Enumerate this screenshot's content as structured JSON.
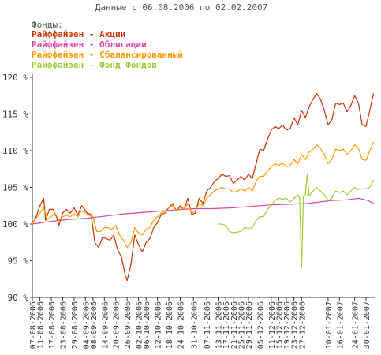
{
  "chart_data": {
    "type": "line",
    "title": "Данные с 06.08.2006 по 02.02.2007",
    "legend_title": "Фонды:",
    "legend_placement": "top-left",
    "grid": false,
    "ylim": [
      90,
      120
    ],
    "y_ticks": [
      {
        "value": 90,
        "label": "90 %"
      },
      {
        "value": 95,
        "label": "95 %"
      },
      {
        "value": 100,
        "label": "100 %"
      },
      {
        "value": 105,
        "label": "105 %"
      },
      {
        "value": 110,
        "label": "110 %"
      },
      {
        "value": 115,
        "label": "115 %"
      },
      {
        "value": 120,
        "label": "120 %"
      }
    ],
    "x_range": [
      "2006-08-07",
      "2007-02-04"
    ],
    "x_ticks": [
      "07-08-2006",
      "11-08-2006",
      "17-08-2006",
      "23-08-2006",
      "29-08-2006",
      "04-09-2006",
      "08-09-2006",
      "14-09-2006",
      "20-09-2006",
      "26-09-2006",
      "02-10-2006",
      "06-10-2006",
      "12-10-2006",
      "18-10-2006",
      "24-10-2006",
      "31-10-2006",
      "07-11-2006",
      "13-11-2006",
      "17-11-2006",
      "21-11-2006",
      "25-11-2006",
      "29-11-2006",
      "05-12-2006",
      "11-12-2006",
      "15-12-2006",
      "19-12-2006",
      "23-12-2006",
      "27-12-2006",
      "10-01-2007",
      "16-01-2007",
      "24-01-2007",
      "30-01-2007"
    ],
    "series": [
      {
        "name": "Райффайзен - Акции",
        "color": "#cc3300",
        "points": [
          [
            "2006-08-07",
            100.0
          ],
          [
            "2006-08-09",
            101.0
          ],
          [
            "2006-08-11",
            102.5
          ],
          [
            "2006-08-13",
            103.5
          ],
          [
            "2006-08-14",
            100.5
          ],
          [
            "2006-08-16",
            102.0
          ],
          [
            "2006-08-18",
            102.0
          ],
          [
            "2006-08-20",
            100.8
          ],
          [
            "2006-08-21",
            99.8
          ],
          [
            "2006-08-23",
            101.5
          ],
          [
            "2006-08-25",
            102.0
          ],
          [
            "2006-08-27",
            101.5
          ],
          [
            "2006-08-29",
            102.2
          ],
          [
            "2006-08-31",
            101.2
          ],
          [
            "2006-09-02",
            102.5
          ],
          [
            "2006-09-03",
            102.2
          ],
          [
            "2006-09-05",
            101.5
          ],
          [
            "2006-09-07",
            101.3
          ],
          [
            "2006-09-09",
            97.5
          ],
          [
            "2006-09-11",
            96.8
          ],
          [
            "2006-09-13",
            98.2
          ],
          [
            "2006-09-15",
            98.0
          ],
          [
            "2006-09-17",
            97.8
          ],
          [
            "2006-09-19",
            98.5
          ],
          [
            "2006-09-21",
            96.5
          ],
          [
            "2006-09-23",
            95.5
          ],
          [
            "2006-09-25",
            93.0
          ],
          [
            "2006-09-26",
            92.3
          ],
          [
            "2006-09-28",
            94.5
          ],
          [
            "2006-09-30",
            98.5
          ],
          [
            "2006-10-02",
            97.2
          ],
          [
            "2006-10-04",
            96.2
          ],
          [
            "2006-10-06",
            97.5
          ],
          [
            "2006-10-08",
            98.0
          ],
          [
            "2006-10-10",
            99.5
          ],
          [
            "2006-10-12",
            100.2
          ],
          [
            "2006-10-14",
            101.3
          ],
          [
            "2006-10-16",
            101.5
          ],
          [
            "2006-10-18",
            102.2
          ],
          [
            "2006-10-20",
            102.8
          ],
          [
            "2006-10-22",
            101.8
          ],
          [
            "2006-10-24",
            102.5
          ],
          [
            "2006-10-26",
            102.0
          ],
          [
            "2006-10-28",
            103.5
          ],
          [
            "2006-10-30",
            101.3
          ],
          [
            "2006-11-01",
            101.5
          ],
          [
            "2006-11-03",
            103.5
          ],
          [
            "2006-11-05",
            102.8
          ],
          [
            "2006-11-07",
            104.5
          ],
          [
            "2006-11-09",
            105.0
          ],
          [
            "2006-11-11",
            105.8
          ],
          [
            "2006-11-13",
            106.2
          ],
          [
            "2006-11-15",
            106.8
          ],
          [
            "2006-11-17",
            106.5
          ],
          [
            "2006-11-19",
            106.6
          ],
          [
            "2006-11-21",
            105.5
          ],
          [
            "2006-11-23",
            106.0
          ],
          [
            "2006-11-25",
            106.5
          ],
          [
            "2006-11-27",
            106.0
          ],
          [
            "2006-11-29",
            106.8
          ],
          [
            "2006-12-01",
            106.2
          ],
          [
            "2006-12-03",
            108.2
          ],
          [
            "2006-12-05",
            110.2
          ],
          [
            "2006-12-07",
            110.0
          ],
          [
            "2006-12-09",
            111.5
          ],
          [
            "2006-12-11",
            112.8
          ],
          [
            "2006-12-13",
            113.3
          ],
          [
            "2006-12-15",
            113.0
          ],
          [
            "2006-12-17",
            113.5
          ],
          [
            "2006-12-19",
            112.8
          ],
          [
            "2006-12-21",
            113.0
          ],
          [
            "2006-12-23",
            114.5
          ],
          [
            "2006-12-25",
            113.5
          ],
          [
            "2006-12-27",
            115.5
          ],
          [
            "2006-12-29",
            114.5
          ],
          [
            "2006-12-31",
            116.0
          ],
          [
            "2007-01-02",
            117.0
          ],
          [
            "2007-01-04",
            117.8
          ],
          [
            "2007-01-06",
            117.0
          ],
          [
            "2007-01-08",
            115.5
          ],
          [
            "2007-01-10",
            113.5
          ],
          [
            "2007-01-12",
            114.2
          ],
          [
            "2007-01-14",
            116.5
          ],
          [
            "2007-01-16",
            116.3
          ],
          [
            "2007-01-18",
            116.5
          ],
          [
            "2007-01-20",
            115.3
          ],
          [
            "2007-01-22",
            116.2
          ],
          [
            "2007-01-24",
            117.5
          ],
          [
            "2007-01-26",
            116.5
          ],
          [
            "2007-01-28",
            113.5
          ],
          [
            "2007-01-30",
            113.3
          ],
          [
            "2007-02-01",
            115.5
          ],
          [
            "2007-02-03",
            117.8
          ]
        ]
      },
      {
        "name": "Райффайзен - Облигации",
        "color": "#dd44aa",
        "points": [
          [
            "2006-08-07",
            100.0
          ],
          [
            "2006-08-15",
            100.3
          ],
          [
            "2006-08-25",
            100.6
          ],
          [
            "2006-09-05",
            100.8
          ],
          [
            "2006-09-15",
            101.1
          ],
          [
            "2006-09-25",
            101.4
          ],
          [
            "2006-10-05",
            101.6
          ],
          [
            "2006-10-15",
            101.8
          ],
          [
            "2006-10-25",
            102.0
          ],
          [
            "2006-11-01",
            102.1
          ],
          [
            "2006-11-10",
            102.1
          ],
          [
            "2006-11-20",
            102.2
          ],
          [
            "2006-11-30",
            102.4
          ],
          [
            "2006-12-10",
            102.6
          ],
          [
            "2006-12-20",
            102.7
          ],
          [
            "2006-12-30",
            102.8
          ],
          [
            "2007-01-05",
            103.0
          ],
          [
            "2007-01-12",
            103.2
          ],
          [
            "2007-01-20",
            103.3
          ],
          [
            "2007-01-26",
            103.5
          ],
          [
            "2007-01-28",
            103.4
          ],
          [
            "2007-01-31",
            103.2
          ],
          [
            "2007-02-03",
            102.8
          ]
        ]
      },
      {
        "name": "Райффайзен - Сбалансированный",
        "color": "#ff9900",
        "points": [
          [
            "2006-08-07",
            100.0
          ],
          [
            "2006-08-09",
            100.8
          ],
          [
            "2006-08-11",
            101.5
          ],
          [
            "2006-08-13",
            102.2
          ],
          [
            "2006-08-15",
            100.6
          ],
          [
            "2006-08-17",
            101.0
          ],
          [
            "2006-08-19",
            101.5
          ],
          [
            "2006-08-21",
            100.5
          ],
          [
            "2006-08-23",
            101.0
          ],
          [
            "2006-08-25",
            101.2
          ],
          [
            "2006-08-27",
            101.0
          ],
          [
            "2006-08-29",
            101.4
          ],
          [
            "2006-08-31",
            101.0
          ],
          [
            "2006-09-02",
            101.8
          ],
          [
            "2006-09-04",
            101.5
          ],
          [
            "2006-09-06",
            101.2
          ],
          [
            "2006-09-08",
            101.0
          ],
          [
            "2006-09-10",
            99.0
          ],
          [
            "2006-09-12",
            99.0
          ],
          [
            "2006-09-14",
            99.5
          ],
          [
            "2006-09-16",
            99.5
          ],
          [
            "2006-09-18",
            99.3
          ],
          [
            "2006-09-20",
            99.8
          ],
          [
            "2006-09-22",
            98.5
          ],
          [
            "2006-09-24",
            97.8
          ],
          [
            "2006-09-26",
            96.8
          ],
          [
            "2006-09-28",
            97.5
          ],
          [
            "2006-09-30",
            99.5
          ],
          [
            "2006-10-02",
            98.8
          ],
          [
            "2006-10-04",
            98.5
          ],
          [
            "2006-10-06",
            99.3
          ],
          [
            "2006-10-08",
            99.5
          ],
          [
            "2006-10-10",
            100.5
          ],
          [
            "2006-10-12",
            101.0
          ],
          [
            "2006-10-14",
            101.5
          ],
          [
            "2006-10-16",
            101.8
          ],
          [
            "2006-10-18",
            102.2
          ],
          [
            "2006-10-20",
            102.5
          ],
          [
            "2006-10-22",
            101.8
          ],
          [
            "2006-10-24",
            102.3
          ],
          [
            "2006-10-26",
            102.0
          ],
          [
            "2006-10-28",
            102.8
          ],
          [
            "2006-10-30",
            101.5
          ],
          [
            "2006-11-01",
            101.8
          ],
          [
            "2006-11-03",
            102.8
          ],
          [
            "2006-11-05",
            102.5
          ],
          [
            "2006-11-07",
            103.5
          ],
          [
            "2006-11-09",
            104.0
          ],
          [
            "2006-11-11",
            104.5
          ],
          [
            "2006-11-13",
            104.8
          ],
          [
            "2006-11-15",
            105.0
          ],
          [
            "2006-11-17",
            104.8
          ],
          [
            "2006-11-19",
            104.8
          ],
          [
            "2006-11-21",
            104.3
          ],
          [
            "2006-11-23",
            104.5
          ],
          [
            "2006-11-25",
            104.8
          ],
          [
            "2006-11-27",
            104.5
          ],
          [
            "2006-11-29",
            105.0
          ],
          [
            "2006-12-01",
            104.5
          ],
          [
            "2006-12-03",
            105.8
          ],
          [
            "2006-12-05",
            106.5
          ],
          [
            "2006-12-07",
            106.5
          ],
          [
            "2006-12-09",
            107.2
          ],
          [
            "2006-12-11",
            107.8
          ],
          [
            "2006-12-13",
            108.2
          ],
          [
            "2006-12-15",
            108.0
          ],
          [
            "2006-12-17",
            108.3
          ],
          [
            "2006-12-19",
            107.8
          ],
          [
            "2006-12-21",
            108.0
          ],
          [
            "2006-12-23",
            108.8
          ],
          [
            "2006-12-25",
            108.2
          ],
          [
            "2006-12-27",
            109.5
          ],
          [
            "2006-12-29",
            108.8
          ],
          [
            "2006-12-31",
            109.8
          ],
          [
            "2007-01-02",
            110.2
          ],
          [
            "2007-01-04",
            110.8
          ],
          [
            "2007-01-06",
            110.3
          ],
          [
            "2007-01-08",
            109.5
          ],
          [
            "2007-01-10",
            108.2
          ],
          [
            "2007-01-12",
            108.8
          ],
          [
            "2007-01-14",
            110.2
          ],
          [
            "2007-01-16",
            110.0
          ],
          [
            "2007-01-18",
            110.2
          ],
          [
            "2007-01-20",
            109.5
          ],
          [
            "2007-01-22",
            110.0
          ],
          [
            "2007-01-24",
            110.8
          ],
          [
            "2007-01-26",
            110.3
          ],
          [
            "2007-01-28",
            108.8
          ],
          [
            "2007-01-30",
            108.7
          ],
          [
            "2007-02-01",
            110.0
          ],
          [
            "2007-02-03",
            111.2
          ]
        ]
      },
      {
        "name": "Райффайзен - Фонд Фондов",
        "color": "#99cc33",
        "points": [
          [
            "2006-11-13",
            100.0
          ],
          [
            "2006-11-15",
            100.0
          ],
          [
            "2006-11-17",
            99.8
          ],
          [
            "2006-11-19",
            99.0
          ],
          [
            "2006-11-21",
            98.8
          ],
          [
            "2006-11-23",
            98.9
          ],
          [
            "2006-11-25",
            99.0
          ],
          [
            "2006-11-27",
            99.5
          ],
          [
            "2006-11-29",
            99.4
          ],
          [
            "2006-12-01",
            99.5
          ],
          [
            "2006-12-03",
            100.5
          ],
          [
            "2006-12-05",
            101.0
          ],
          [
            "2006-12-07",
            101.0
          ],
          [
            "2006-12-09",
            102.0
          ],
          [
            "2006-12-11",
            102.5
          ],
          [
            "2006-12-13",
            103.2
          ],
          [
            "2006-12-15",
            103.5
          ],
          [
            "2006-12-17",
            103.4
          ],
          [
            "2006-12-19",
            103.5
          ],
          [
            "2006-12-21",
            103.0
          ],
          [
            "2006-12-23",
            103.5
          ],
          [
            "2006-12-25",
            104.0
          ],
          [
            "2006-12-26",
            103.5
          ],
          [
            "2006-12-27",
            94.0
          ],
          [
            "2006-12-28",
            103.8
          ],
          [
            "2006-12-29",
            104.0
          ],
          [
            "2006-12-30",
            106.8
          ],
          [
            "2006-12-31",
            103.8
          ],
          [
            "2007-01-02",
            104.5
          ],
          [
            "2007-01-04",
            105.0
          ],
          [
            "2007-01-06",
            104.5
          ],
          [
            "2007-01-08",
            104.0
          ],
          [
            "2007-01-10",
            103.2
          ],
          [
            "2007-01-12",
            103.5
          ],
          [
            "2007-01-14",
            104.5
          ],
          [
            "2007-01-16",
            104.3
          ],
          [
            "2007-01-18",
            104.5
          ],
          [
            "2007-01-20",
            104.0
          ],
          [
            "2007-01-22",
            104.5
          ],
          [
            "2007-01-24",
            105.0
          ],
          [
            "2007-01-26",
            104.7
          ],
          [
            "2007-01-28",
            104.8
          ],
          [
            "2007-01-30",
            104.8
          ],
          [
            "2007-02-01",
            105.0
          ],
          [
            "2007-02-03",
            106.0
          ]
        ]
      }
    ]
  }
}
